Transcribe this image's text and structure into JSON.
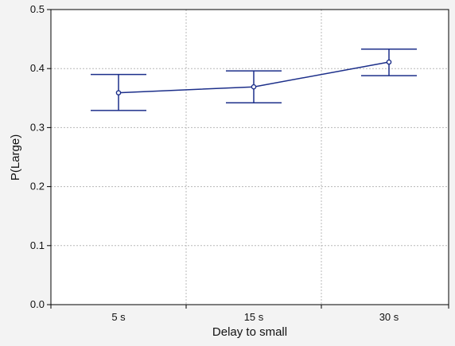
{
  "chart_data": {
    "type": "line",
    "xlabel": "Delay to small",
    "ylabel": "P(Large)",
    "categories": [
      "5 s",
      "15 s",
      "30 s"
    ],
    "ylim": [
      0,
      0.5
    ],
    "yticks": [
      "0.0",
      "0.1",
      "0.2",
      "0.3",
      "0.4",
      "0.5"
    ],
    "grid": true,
    "series": [
      {
        "values": [
          0.359,
          0.369,
          0.411
        ],
        "error_low": [
          0.329,
          0.342,
          0.388
        ],
        "error_high": [
          0.39,
          0.396,
          0.433
        ]
      }
    ]
  },
  "colors": {
    "background": "#f3f3f3",
    "plot_area": "#ffffff",
    "series": "#1c2f8a",
    "grid": "#b8b8b8",
    "axis": "#000000"
  }
}
